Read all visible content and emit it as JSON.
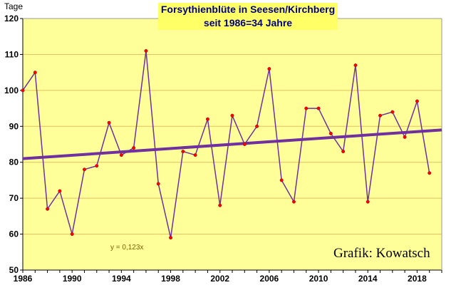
{
  "chart_data": {
    "type": "line",
    "title": "Forsythienblüte in Seesen/Kirchberg",
    "subtitle": "seit 1986=34 Jahre",
    "ylabel": "Tage",
    "xlabel": "",
    "xlim": [
      1986,
      2020
    ],
    "ylim": [
      50,
      120
    ],
    "yticks": [
      50,
      60,
      70,
      80,
      90,
      100,
      110,
      120
    ],
    "xticks": [
      1986,
      1990,
      1994,
      1998,
      2002,
      2006,
      2010,
      2014,
      2018
    ],
    "grid": true,
    "series": [
      {
        "x": [
          1986,
          1987,
          1988,
          1989,
          1990,
          1991,
          1992,
          1993,
          1994,
          1995,
          1996,
          1997,
          1998,
          1999,
          2000,
          2001,
          2002,
          2003,
          2004,
          2005,
          2006,
          2007,
          2008,
          2009,
          2010,
          2011,
          2012,
          2013,
          2014,
          2015,
          2016,
          2017,
          2018,
          2019
        ],
        "values": [
          100,
          105,
          67,
          72,
          60,
          78,
          79,
          91,
          82,
          84,
          111,
          74,
          59,
          83,
          82,
          92,
          68,
          93,
          85,
          90,
          106,
          75,
          69,
          95,
          95,
          88,
          83,
          107,
          69,
          93,
          94,
          87,
          97,
          77
        ],
        "color": "#7030a0"
      }
    ],
    "trendline": {
      "equation": "y = 0,123x",
      "start": [
        1986,
        81
      ],
      "end": [
        2020,
        89
      ],
      "color": "#7030a0"
    },
    "annotations": [
      "Grafik: Kowatsch"
    ],
    "colors": {
      "plot_background": "#ffff99",
      "marker": "#ff0000",
      "line": "#7030a0"
    }
  }
}
